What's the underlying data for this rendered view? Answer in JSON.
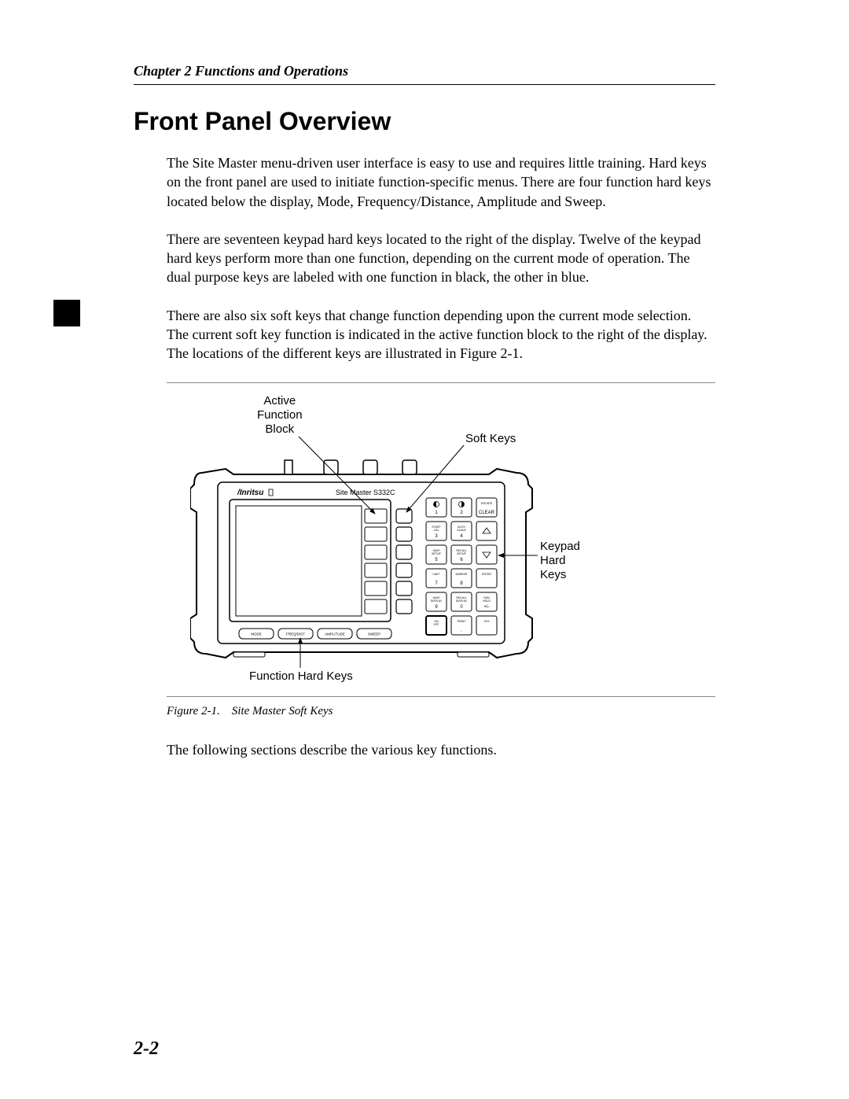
{
  "chapter_header": "Chapter 2 Functions and Operations",
  "heading": "Front Panel Overview",
  "para1": "The Site Master menu-driven user interface is easy to use and requires little training. Hard keys on the front panel are used to initiate function-specific menus. There are four function hard keys located below the display, Mode, Frequency/Distance, Amplitude and Sweep.",
  "para2": "There are seventeen keypad hard keys located to the right of the display. Twelve of the keypad hard keys perform more than one function, depending on the current mode of operation. The dual purpose keys are labeled with one function in black, the other in blue.",
  "para3": "There are also six soft keys that change function depending upon the current mode selection. The current soft key function is indicated in the active function block to the right of the display. The locations of the different keys are illustrated in Figure 2-1.",
  "para_after": "The following sections describe the various key functions.",
  "figure_caption_num": "Figure 2-1.",
  "figure_caption_text": "Site Master Soft Keys",
  "page_number": "2-2",
  "figure": {
    "brand": "Anritsu",
    "model": "Site Master S332C",
    "callouts": {
      "afb_l1": "Active",
      "afb_l2": "Function",
      "afb_l3": "Block",
      "softkeys": "Soft Keys",
      "keypad_l1": "Keypad",
      "keypad_l2": "Hard",
      "keypad_l3": "Keys",
      "fhk": "Function Hard Keys"
    },
    "bottom_buttons": [
      "MODE",
      "FREQ/DIST",
      "AMPLITUDE",
      "SWEEP"
    ],
    "keypad_rows": [
      [
        {
          "t": "",
          "b": "1"
        },
        {
          "t": "",
          "b": "2"
        },
        {
          "t": "ESCAPE",
          "b": "CLEAR"
        }
      ],
      [
        {
          "t": "START CAL",
          "b": "3"
        },
        {
          "t": "AUTO SCALE",
          "b": "4"
        },
        {
          "t": "",
          "b": ""
        }
      ],
      [
        {
          "t": "SAVE SETUP",
          "b": "5"
        },
        {
          "t": "RECALL SETUP",
          "b": "6"
        },
        {
          "t": "",
          "b": ""
        }
      ],
      [
        {
          "t": "LIMIT",
          "b": "7"
        },
        {
          "t": "MARKER",
          "b": "8"
        },
        {
          "t": "ENTER",
          "b": ""
        }
      ],
      [
        {
          "t": "SAVE DISPLAY",
          "b": "9"
        },
        {
          "t": "RECALL DISPLAY",
          "b": "0"
        },
        {
          "t": "RUN HOLD",
          "b": "+/-"
        }
      ],
      [
        {
          "t": "ON OFF",
          "b": ""
        },
        {
          "t": "PRINT",
          "b": "."
        },
        {
          "t": "SYS",
          "b": ""
        }
      ]
    ],
    "colors": {
      "outline": "#000000",
      "screen_fill": "#ffffff",
      "body_fill": "#ffffff"
    }
  }
}
